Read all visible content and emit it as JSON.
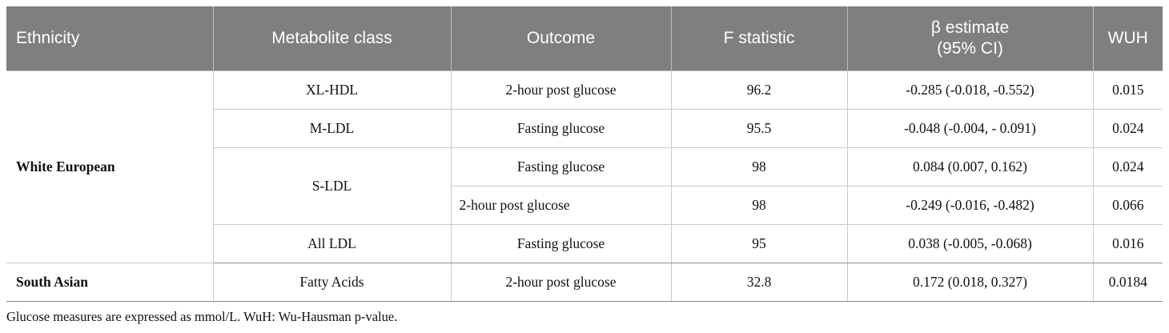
{
  "table": {
    "headers": {
      "ethnicity": "Ethnicity",
      "metabolite_class": "Metabolite class",
      "outcome": "Outcome",
      "f_statistic": "F statistic",
      "beta_line1": "β estimate",
      "beta_line2": "(95% CI)",
      "wuh": "WUH"
    },
    "groups": [
      {
        "ethnicity": "White European",
        "rows": [
          {
            "metabolite": "XL-HDL",
            "outcome": "2-hour post glucose",
            "f": "96.2",
            "beta": "-0.285 (-0.018, -0.552)",
            "wuh": "0.015"
          },
          {
            "metabolite": "M-LDL",
            "outcome": "Fasting glucose",
            "f": "95.5",
            "beta": "-0.048 (-0.004, - 0.091)",
            "wuh": "0.024"
          },
          {
            "metabolite": "S-LDL",
            "outcome": "Fasting glucose",
            "f": "98",
            "beta": "0.084 (0.007, 0.162)",
            "wuh": "0.024"
          },
          {
            "metabolite": "S-LDL",
            "outcome": "2-hour post glucose",
            "f": "98",
            "beta": "-0.249 (-0.016, -0.482)",
            "wuh": "0.066"
          },
          {
            "metabolite": "All LDL",
            "outcome": "Fasting glucose",
            "f": "95",
            "beta": "0.038 (-0.005, -0.068)",
            "wuh": "0.016"
          }
        ]
      },
      {
        "ethnicity": "South Asian",
        "rows": [
          {
            "metabolite": "Fatty Acids",
            "outcome": "2-hour post glucose",
            "f": "32.8",
            "beta": "0.172 (0.018, 0.327)",
            "wuh": "0.0184"
          }
        ]
      }
    ]
  },
  "footnote": "Glucose measures are expressed as mmol/L. WuH: Wu-Hausman p-value."
}
